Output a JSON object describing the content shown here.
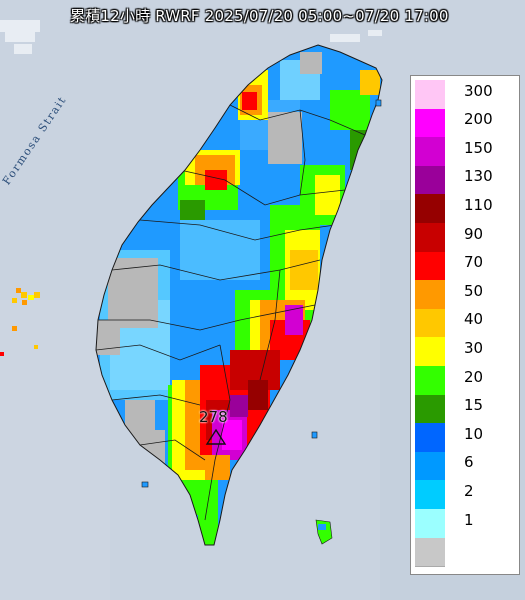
{
  "title": "累積12小時 RWRF 2025/07/20 05:00~07/20 17:00",
  "strait_label": "Formosa Strait",
  "peak": {
    "value": "278",
    "marker": "triangle-marker"
  },
  "legend": {
    "labels": [
      "300",
      "200",
      "150",
      "130",
      "110",
      "90",
      "70",
      "50",
      "40",
      "30",
      "20",
      "15",
      "10",
      "6",
      "2",
      "1"
    ],
    "colors": [
      "#ffc6f5",
      "#ff00ff",
      "#d200d2",
      "#9a009a",
      "#960000",
      "#c80000",
      "#ff0000",
      "#ff9900",
      "#ffc800",
      "#ffff00",
      "#33ff00",
      "#2a9a00",
      "#0066ff",
      "#0099ff",
      "#00ccff",
      "#9bffff",
      "#c8c8c8"
    ]
  },
  "colors": {
    "sea": "#c9d3e0",
    "land_grey": "#b8b8b8"
  }
}
